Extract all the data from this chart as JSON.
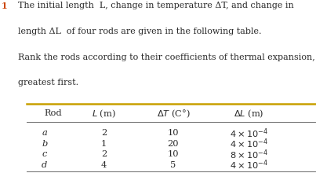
{
  "title_number": "1",
  "title_line1": "The initial length  L, change in temperature ΔT, and change in",
  "title_line2": "length ΔL  of four rods are given in the following table.",
  "title_line3": "Rank the rods according to their coefficients of thermal expansion,",
  "title_line4": "greatest first.",
  "col_headers": [
    "Rod",
    "L (m)",
    "ΔT (C°)",
    "ΔL (m)"
  ],
  "rows": [
    [
      "a",
      "2",
      "10",
      "4"
    ],
    [
      "b",
      "1",
      "20",
      "4"
    ],
    [
      "c",
      "2",
      "10",
      "8"
    ],
    [
      "d",
      "4",
      "5",
      "4"
    ]
  ],
  "background_color": "#ffffff",
  "text_color": "#2a2a2a",
  "number_color": "#cc4400",
  "gold_line_color": "#c8a000",
  "gray_line_color": "#666666",
  "title_fontsize": 8.0,
  "header_fontsize": 8.2,
  "body_fontsize": 8.2
}
